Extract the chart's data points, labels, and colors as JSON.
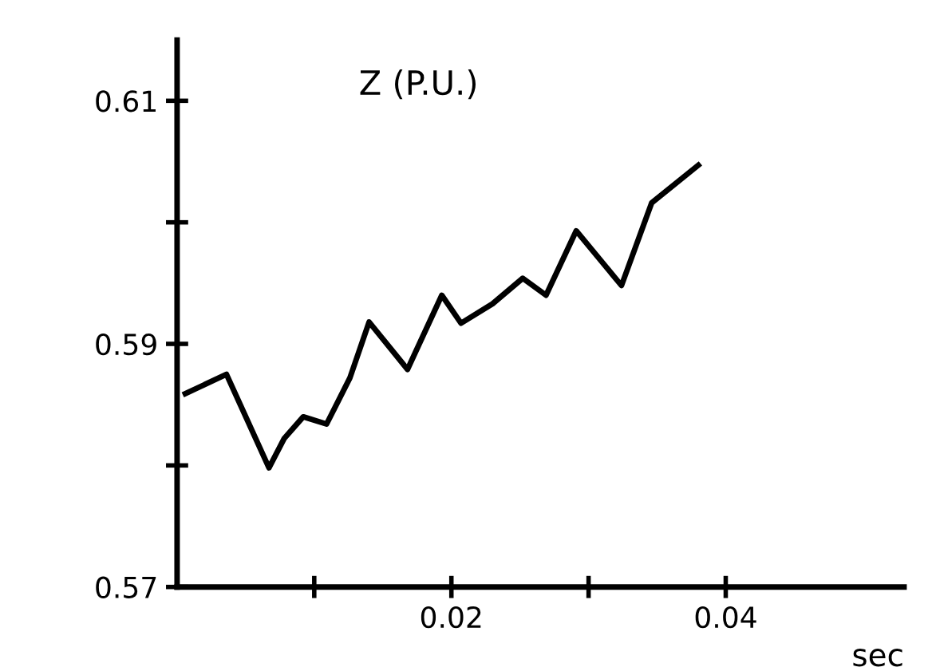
{
  "chart_data": {
    "type": "line",
    "xlabel": "sec",
    "annotations": [
      "Z (P.U.)"
    ],
    "x": [
      0.0006,
      0.0036,
      0.0067,
      0.0078,
      0.0092,
      0.0109,
      0.0126,
      0.014,
      0.0168,
      0.0193,
      0.0207,
      0.023,
      0.0252,
      0.0269,
      0.0291,
      0.0324,
      0.0346,
      0.038
    ],
    "series": [
      {
        "color": "#000000",
        "values": [
          0.5859,
          0.5875,
          0.5798,
          0.5822,
          0.584,
          0.5834,
          0.5872,
          0.5918,
          0.5879,
          0.594,
          0.5917,
          0.5933,
          0.5954,
          0.594,
          0.5993,
          0.5948,
          0.6016,
          0.6047
        ]
      }
    ],
    "xlim": [
      0,
      0.053
    ],
    "ylim": [
      0.57,
      0.615
    ],
    "xticks": [
      {
        "value": 0.01,
        "label": null
      },
      0.02,
      {
        "value": 0.03,
        "label": null
      },
      0.04
    ],
    "yticks": [
      0.57,
      {
        "value": 0.58,
        "label": null
      },
      0.59,
      {
        "value": 0.6,
        "label": null
      },
      0.61
    ],
    "grid": false,
    "legend": false,
    "marker": "none",
    "line_style": "solid"
  }
}
